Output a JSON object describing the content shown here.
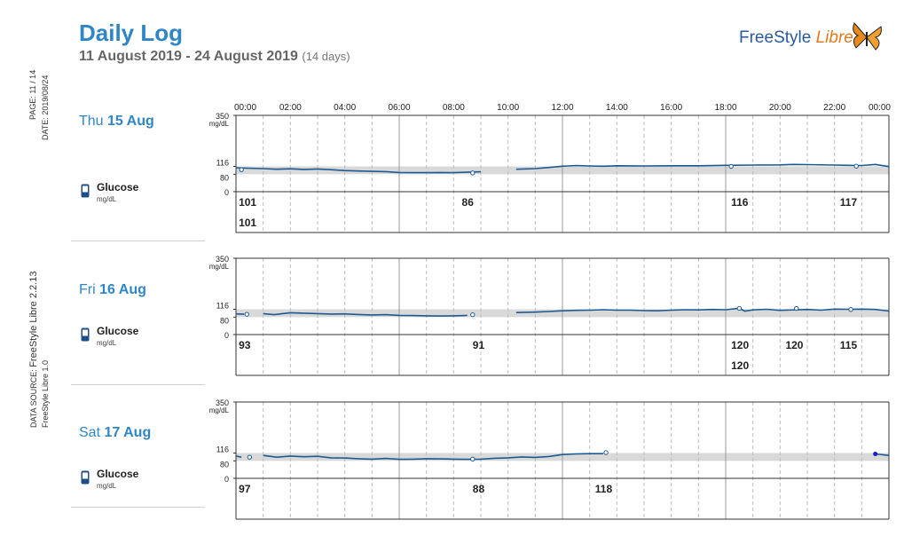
{
  "header": {
    "title": "Daily Log",
    "date_range": "11 August 2019 - 24 August 2019",
    "days": "(14 days)"
  },
  "logo": {
    "part1": "FreeStyle",
    "part2": "Libre"
  },
  "side": {
    "page_label": "PAGE: 11 / 14",
    "date_label": "DATE: 2019/08/24",
    "datasource_prefix": "DATA SOURCE:",
    "datasource_value": "FreeStyle Libre 2.2.13",
    "device": "FreeStyle Libre 1.0"
  },
  "glucose": {
    "label": "Glucose",
    "unit": "mg/dL"
  },
  "colors": {
    "accent": "#2f86c6",
    "trace": "#1d5a93",
    "target_band": "#d9d9d9"
  },
  "chart_data": {
    "type": "line",
    "x_ticks": [
      "00:00",
      "02:00",
      "04:00",
      "06:00",
      "08:00",
      "10:00",
      "12:00",
      "14:00",
      "16:00",
      "18:00",
      "20:00",
      "22:00",
      "00:00"
    ],
    "y_ticks": [
      350,
      116,
      80,
      0
    ],
    "y_unit": "mg/dL",
    "ylim": [
      0,
      350
    ],
    "target_range": [
      80,
      116
    ],
    "days": [
      {
        "weekday": "Thu",
        "day": "15 Aug",
        "series": [
          [
            [
              0,
              110
            ],
            [
              0.4,
              108
            ],
            [
              1,
              106
            ],
            [
              1.5,
              103
            ],
            [
              2,
              105
            ],
            [
              2.5,
              102
            ],
            [
              3,
              104
            ],
            [
              3.5,
              101
            ],
            [
              4,
              97
            ],
            [
              4.5,
              95
            ],
            [
              5,
              93
            ],
            [
              5.5,
              92
            ],
            [
              6,
              88
            ],
            [
              6.5,
              87
            ],
            [
              7,
              87
            ],
            [
              7.5,
              88
            ],
            [
              8,
              87
            ],
            [
              8.5,
              89
            ],
            [
              9,
              91
            ]
          ],
          [
            [
              10.3,
              103
            ],
            [
              11,
              106
            ],
            [
              11.5,
              111
            ],
            [
              12,
              117
            ],
            [
              12.5,
              120
            ],
            [
              13,
              118
            ],
            [
              13.5,
              117
            ],
            [
              14,
              119
            ],
            [
              15,
              118
            ],
            [
              16,
              119
            ],
            [
              17,
              119
            ],
            [
              18,
              121
            ],
            [
              19,
              122
            ],
            [
              20,
              123
            ],
            [
              20.5,
              125
            ],
            [
              21,
              124
            ],
            [
              22,
              122
            ],
            [
              22.5,
              121
            ],
            [
              23,
              120
            ],
            [
              23.5,
              125
            ],
            [
              24,
              115
            ]
          ]
        ],
        "scans": [
          {
            "t": 0.2,
            "v": 101
          },
          {
            "t": 8.7,
            "v": 86
          },
          {
            "t": 18.2,
            "v": 116
          },
          {
            "t": 22.8,
            "v": 117
          }
        ],
        "labels": [
          {
            "t": 0.1,
            "row": 1,
            "v": "101"
          },
          {
            "t": 0.1,
            "row": 2,
            "v": "101"
          },
          {
            "t": 8.3,
            "row": 1,
            "v": "86"
          },
          {
            "t": 18.2,
            "row": 1,
            "v": "116"
          },
          {
            "t": 22.2,
            "row": 1,
            "v": "117"
          }
        ]
      },
      {
        "weekday": "Fri",
        "day": "16 Aug",
        "series": [
          [
            [
              0,
              95
            ],
            [
              0.3,
              93
            ]
          ],
          [
            [
              1,
              96
            ],
            [
              1.4,
              91
            ],
            [
              2,
              100
            ],
            [
              2.5,
              98
            ],
            [
              3,
              96
            ],
            [
              3.5,
              94
            ],
            [
              4,
              95
            ],
            [
              4.5,
              92
            ],
            [
              5,
              90
            ],
            [
              5.5,
              91
            ],
            [
              6,
              88
            ],
            [
              6.5,
              87
            ],
            [
              7,
              86
            ],
            [
              7.5,
              85
            ],
            [
              8,
              86
            ],
            [
              8.5,
              88
            ]
          ],
          [
            [
              10.3,
              101
            ],
            [
              11,
              103
            ],
            [
              11.5,
              106
            ],
            [
              12,
              109
            ],
            [
              12.5,
              111
            ],
            [
              13,
              112
            ],
            [
              13.5,
              114
            ],
            [
              14,
              112
            ],
            [
              14.5,
              112
            ],
            [
              15,
              110
            ],
            [
              15.5,
              109
            ],
            [
              16,
              112
            ],
            [
              16.5,
              114
            ],
            [
              17,
              113
            ],
            [
              17.5,
              115
            ],
            [
              18,
              114
            ],
            [
              18.5,
              120
            ],
            [
              18.7,
              108
            ],
            [
              19,
              113
            ],
            [
              19.5,
              116
            ],
            [
              20,
              111
            ],
            [
              20.5,
              113
            ],
            [
              21,
              115
            ],
            [
              21.5,
              112
            ],
            [
              22,
              117
            ],
            [
              22.5,
              116
            ],
            [
              23,
              117
            ],
            [
              23.5,
              115
            ],
            [
              24,
              108
            ]
          ]
        ],
        "scans": [
          {
            "t": 0.4,
            "v": 93
          },
          {
            "t": 8.7,
            "v": 91
          },
          {
            "t": 18.5,
            "v": 120
          },
          {
            "t": 20.6,
            "v": 120
          },
          {
            "t": 22.6,
            "v": 115
          }
        ],
        "labels": [
          {
            "t": 0.1,
            "row": 1,
            "v": "93"
          },
          {
            "t": 8.7,
            "row": 1,
            "v": "91"
          },
          {
            "t": 18.2,
            "row": 1,
            "v": "120"
          },
          {
            "t": 18.2,
            "row": 2,
            "v": "120"
          },
          {
            "t": 20.2,
            "row": 1,
            "v": "120"
          },
          {
            "t": 22.2,
            "row": 1,
            "v": "115"
          }
        ]
      },
      {
        "weekday": "Sat",
        "day": "17 Aug",
        "series": [
          [
            [
              0,
              102
            ],
            [
              0.2,
              97
            ]
          ],
          [
            [
              1,
              105
            ],
            [
              1.5,
              97
            ],
            [
              2,
              102
            ],
            [
              2.5,
              99
            ],
            [
              3,
              101
            ],
            [
              3.5,
              94
            ],
            [
              4,
              93
            ],
            [
              4.5,
              90
            ],
            [
              5,
              88
            ],
            [
              5.5,
              91
            ],
            [
              6,
              87
            ],
            [
              6.5,
              88
            ],
            [
              7,
              90
            ],
            [
              7.5,
              89
            ],
            [
              8,
              88
            ],
            [
              8.5,
              87
            ],
            [
              9,
              88
            ],
            [
              9.5,
              92
            ],
            [
              10,
              94
            ],
            [
              10.5,
              98
            ],
            [
              11,
              96
            ],
            [
              11.5,
              100
            ],
            [
              12,
              109
            ],
            [
              12.5,
              112
            ],
            [
              13,
              113
            ],
            [
              13.5,
              113
            ]
          ],
          [
            [
              23.5,
              112
            ],
            [
              24,
              105
            ]
          ]
        ],
        "scans": [
          {
            "t": 0.5,
            "v": 97
          },
          {
            "t": 8.7,
            "v": 88
          },
          {
            "t": 13.6,
            "v": 118
          }
        ],
        "points": [
          {
            "t": 23.5,
            "v": 112
          }
        ],
        "labels": [
          {
            "t": 0.1,
            "row": 1,
            "v": "97"
          },
          {
            "t": 8.7,
            "row": 1,
            "v": "88"
          },
          {
            "t": 13.2,
            "row": 1,
            "v": "118"
          }
        ]
      }
    ]
  }
}
